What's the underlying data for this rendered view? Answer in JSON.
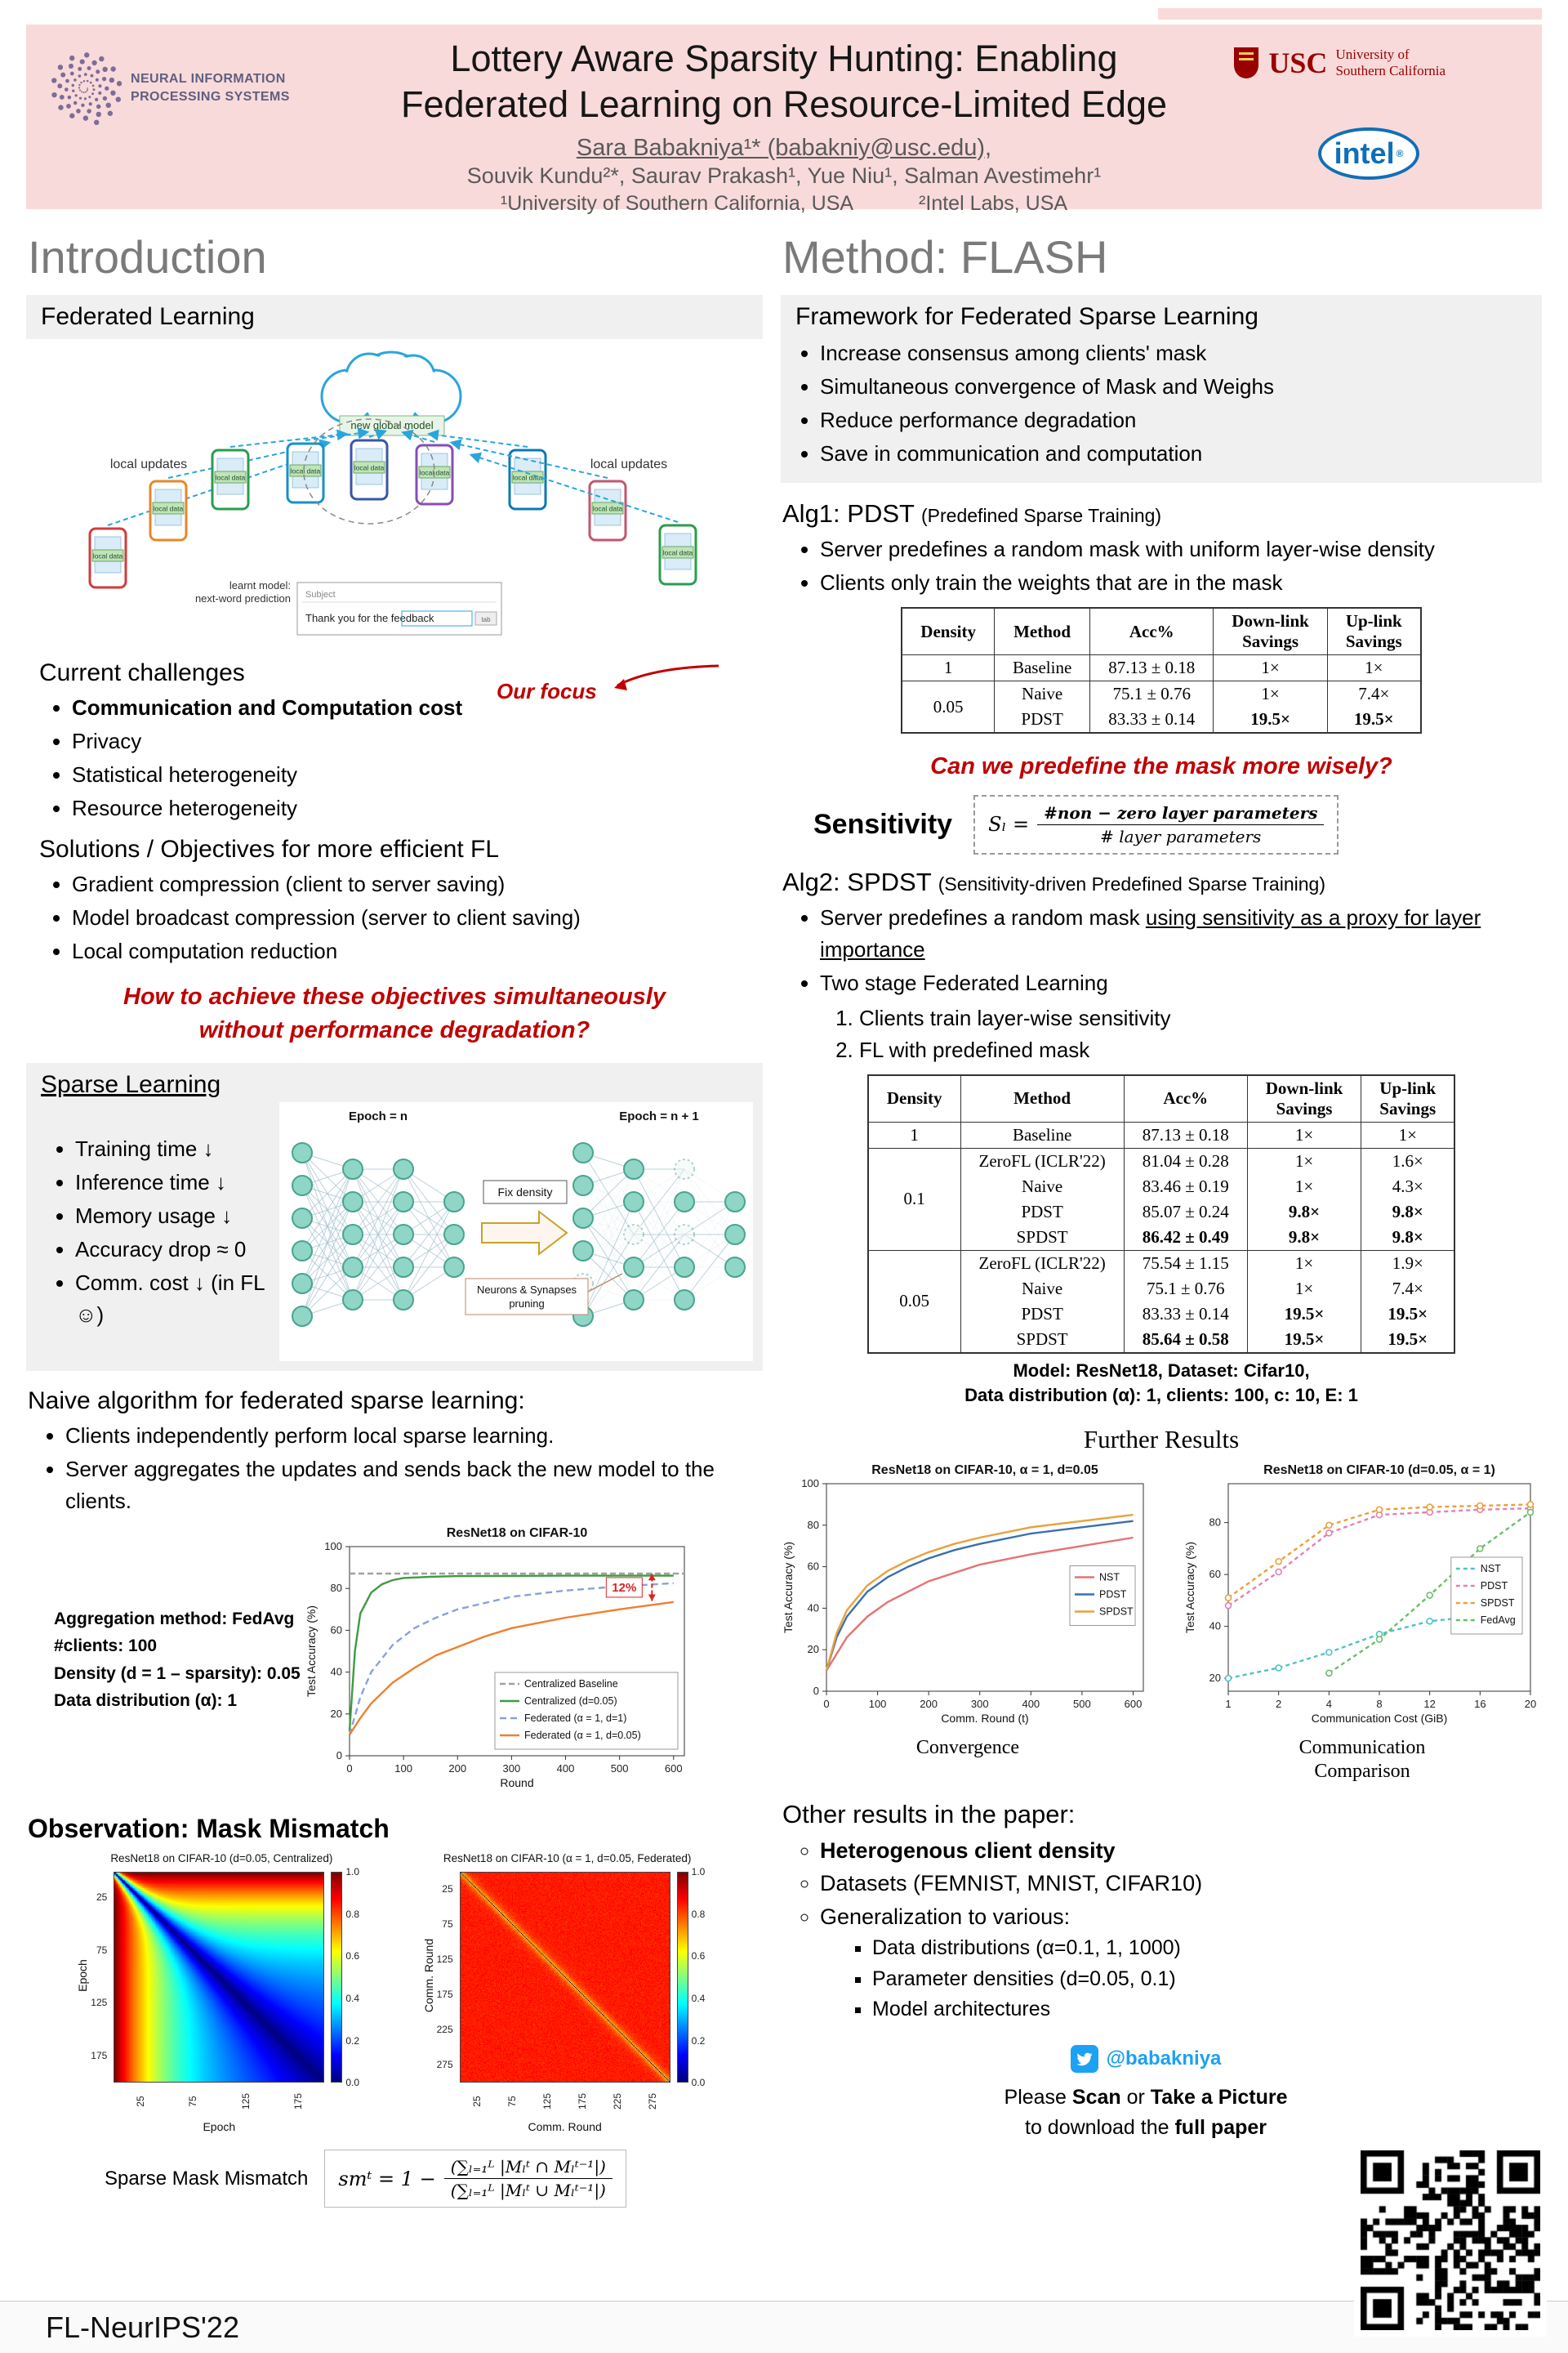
{
  "header": {
    "title_line1": "Lottery Aware Sparsity Hunting: Enabling",
    "title_line2": "Federated Learning on Resource-Limited Edge",
    "author_line1": "Sara Babakniya¹* (babakniy@usc.edu),",
    "author_line2": "Souvik Kundu²*, Saurav Prakash¹, Yue Niu¹, Salman Avestimehr¹",
    "affil_1": "¹University of Southern California, USA",
    "affil_2": "²Intel Labs, USA",
    "neurips_line1": "NEURAL INFORMATION",
    "neurips_line2": "PROCESSING SYSTEMS",
    "usc_name": "USC",
    "usc_sub1": "University of",
    "usc_sub2": "Southern California",
    "intel_name": "intel",
    "intel_r": "®"
  },
  "intro": {
    "title": "Introduction",
    "fl": {
      "title": "Federated Learning",
      "diagram": {
        "cloud_label": "new global model",
        "left_updates": "local updates",
        "right_updates": "local updates",
        "local_data": "local data",
        "learnt_model1": "learnt model:",
        "learnt_model2": "next-word prediction",
        "subject": "Subject",
        "feedback": "Thank you for the feedback",
        "tab": "tab"
      },
      "challenges_title": "Current challenges",
      "our_focus": "Our focus",
      "challenges": [
        "Communication and Computation cost",
        "Privacy",
        "Statistical heterogeneity",
        "Resource heterogeneity"
      ],
      "solutions_title": "Solutions / Objectives for more efficient FL",
      "solutions": [
        "Gradient compression (client to server saving)",
        "Model broadcast compression (server to client saving)",
        "Local computation reduction"
      ],
      "question1": "How to achieve these objectives simultaneously",
      "question2": "without performance degradation?"
    },
    "sparse": {
      "title": "Sparse Learning",
      "benefits": [
        "Training time ↓",
        "Inference time ↓",
        "Memory usage ↓",
        "Accuracy drop ≈ 0",
        "Comm. cost ↓ (in FL☺)"
      ],
      "epoch_left": "Epoch = n",
      "epoch_right": "Epoch = n + 1",
      "fix_density": "Fix density",
      "pruning_label1": "Neurons & Synapses",
      "pruning_label2": "pruning"
    },
    "naive": {
      "title": "Naive algorithm for federated sparse learning:",
      "bullets": [
        "Clients independently perform local sparse learning.",
        "Server aggregates the updates and sends back the new model to the clients."
      ],
      "setup": [
        "Aggregation method: FedAvg",
        "#clients: 100",
        "Density (d = 1 – sparsity): 0.05",
        "Data distribution (α): 1"
      ]
    },
    "observation": {
      "title": "Observation: Mask Mismatch",
      "formula_label": "Sparse Mask Mismatch",
      "formula_lhs": "smᵗ = 1 −",
      "formula_num": "(∑ₗ₌₁ᴸ |Mₗᵗ ∩ Mₗᵗ⁻¹|)",
      "formula_den": "(∑ₗ₌₁ᴸ |Mₗᵗ ∪ Mₗᵗ⁻¹|)"
    }
  },
  "method": {
    "title": "Method: FLASH",
    "framework": {
      "title": "Framework for Federated Sparse Learning",
      "bullets": [
        "Increase consensus among clients' mask",
        "Simultaneous convergence of Mask and Weighs",
        "Reduce performance degradation",
        "Save in communication and computation"
      ]
    },
    "alg1": {
      "title": "Alg1: PDST",
      "subtitle": "(Predefined Sparse Training)",
      "bullets": [
        "Server predefines a random mask with uniform layer-wise density",
        "Clients only train the weights that are in the mask"
      ]
    },
    "table1": {
      "headers": [
        "Density",
        "Method",
        "Acc%",
        "Down-link\nSavings",
        "Up-link\nSavings"
      ],
      "groups": [
        {
          "density": "1",
          "rows": [
            {
              "method": "Baseline",
              "acc": "87.13 ± 0.18",
              "down": "1×",
              "up": "1×"
            }
          ]
        },
        {
          "density": "0.05",
          "rows": [
            {
              "method": "Naive",
              "acc": "75.1 ± 0.76",
              "down": "1×",
              "up": "7.4×"
            },
            {
              "method": "PDST",
              "acc": "83.33 ± 0.14",
              "down": "19.5×",
              "up": "19.5×",
              "bold_savings": true
            }
          ]
        }
      ]
    },
    "question": "Can we predefine the mask more wisely?",
    "sensitivity": {
      "label": "Sensitivity",
      "lhs": "Sₗ =",
      "num": "#non − zero layer parameters",
      "den": "# layer parameters"
    },
    "alg2": {
      "title": "Alg2: SPDST",
      "subtitle": "(Sensitivity-driven Predefined Sparse Training)",
      "b1_plain": "Server predefines a random mask ",
      "b1_underline": "using sensitivity as a proxy for layer importance",
      "b2": "Two stage Federated Learning",
      "steps": [
        "Clients train layer-wise sensitivity",
        "FL with predefined mask"
      ]
    },
    "table2": {
      "headers": [
        "Density",
        "Method",
        "Acc%",
        "Down-link\nSavings",
        "Up-link\nSavings"
      ],
      "groups": [
        {
          "density": "1",
          "rows": [
            {
              "method": "Baseline",
              "acc": "87.13 ± 0.18",
              "down": "1×",
              "up": "1×"
            }
          ]
        },
        {
          "density": "0.1",
          "rows": [
            {
              "method": "ZeroFL (ICLR'22)",
              "acc": "81.04 ± 0.28",
              "down": "1×",
              "up": "1.6×"
            },
            {
              "method": "Naive",
              "acc": "83.46 ± 0.19",
              "down": "1×",
              "up": "4.3×"
            },
            {
              "method": "PDST",
              "acc": "85.07 ± 0.24",
              "down": "9.8×",
              "up": "9.8×",
              "bold_savings": true
            },
            {
              "method": "SPDST",
              "acc": "86.42 ± 0.49",
              "down": "9.8×",
              "up": "9.8×",
              "bold_acc": true,
              "bold_savings": true
            }
          ]
        },
        {
          "density": "0.05",
          "rows": [
            {
              "method": "ZeroFL (ICLR'22)",
              "acc": "75.54 ± 1.15",
              "down": "1×",
              "up": "1.9×"
            },
            {
              "method": "Naive",
              "acc": "75.1 ± 0.76",
              "down": "1×",
              "up": "7.4×"
            },
            {
              "method": "PDST",
              "acc": "83.33 ± 0.14",
              "down": "19.5×",
              "up": "19.5×",
              "bold_savings": true
            },
            {
              "method": "SPDST",
              "acc": "85.64 ± 0.58",
              "down": "19.5×",
              "up": "19.5×",
              "bold_acc": true,
              "bold_savings": true
            }
          ]
        }
      ],
      "caption1": "Model: ResNet18, Dataset: Cifar10,",
      "caption2": "Data distribution (α): 1, clients: 100, c: 10, E: 1"
    },
    "further": {
      "title": "Further Results",
      "caption_left": "Convergence",
      "caption_right1": "Communication",
      "caption_right2": "Comparison"
    },
    "other": {
      "title": "Other results in the paper:",
      "items": [
        "Heterogenous client density",
        "Datasets (FEMNIST, MNIST, CIFAR10)",
        "Generalization to various:"
      ],
      "subitems": [
        "Data distributions (α=0.1, 1, 1000)",
        "Parameter densities (d=0.05, 0.1)",
        "Model architectures"
      ]
    }
  },
  "footer": {
    "venue": "FL-NeurIPS'22",
    "twitter": "@babakniya",
    "scan_parts1": [
      {
        "t": "Please ",
        "b": false
      },
      {
        "t": "Scan",
        "b": true
      },
      {
        "t": " or ",
        "b": false
      },
      {
        "t": "Take a Picture",
        "b": true
      }
    ],
    "scan_parts2": [
      {
        "t": "to download the ",
        "b": false
      },
      {
        "t": "full paper",
        "b": true
      }
    ]
  },
  "chart_data": [
    {
      "id": "naive_chart",
      "type": "line",
      "title": "ResNet18 on CIFAR-10",
      "xlabel": "Round",
      "ylabel": "Test Accuracy (%)",
      "xlim": [
        0,
        620
      ],
      "ylim": [
        0,
        100
      ],
      "xticks": [
        0,
        100,
        200,
        300,
        400,
        500,
        600
      ],
      "yticks": [
        0,
        20,
        40,
        60,
        80,
        100
      ],
      "legend_pos": "bottom-right",
      "annotation": {
        "text": "12%",
        "x": 560,
        "y_from": 74,
        "y_to": 87
      },
      "series": [
        {
          "name": "Centralized Baseline",
          "color": "#a0a0a0",
          "dash": [
            7,
            4
          ],
          "x": [
            0,
            620
          ],
          "y": [
            87.1,
            87.1
          ]
        },
        {
          "name": "Centralized (d=0.05)",
          "color": "#3f9b41",
          "dash": [],
          "x": [
            0,
            10,
            20,
            40,
            60,
            80,
            100,
            150,
            200,
            300,
            400,
            500,
            600
          ],
          "y": [
            12,
            50,
            68,
            78,
            82,
            84,
            85,
            85.6,
            85.9,
            86,
            86.1,
            86.1,
            86.1
          ]
        },
        {
          "name": "Federated (α = 1, d=1)",
          "color": "#8aa0dc",
          "dash": [
            8,
            5
          ],
          "x": [
            0,
            20,
            40,
            80,
            120,
            160,
            200,
            250,
            300,
            400,
            500,
            600
          ],
          "y": [
            10,
            28,
            40,
            53,
            61,
            66,
            70,
            73,
            76,
            79,
            81,
            82.5
          ]
        },
        {
          "name": "Federated (α = 1, d=0.05)",
          "color": "#f07f2e",
          "dash": [],
          "x": [
            0,
            20,
            40,
            80,
            120,
            160,
            200,
            250,
            300,
            400,
            500,
            600
          ],
          "y": [
            10,
            18,
            25,
            35,
            42,
            48,
            52,
            57,
            61,
            66,
            70,
            73.5
          ]
        }
      ]
    },
    {
      "id": "heat_central",
      "type": "heatmap",
      "title": "ResNet18 on CIFAR-10 (d=0.05, Centralized)",
      "xlabel": "Epoch",
      "ylabel": "Epoch",
      "n": 200,
      "ticks": [
        25,
        75,
        125,
        175
      ],
      "cbar_ticks": [
        "1.0",
        "0.8",
        "0.6",
        "0.4",
        "0.2",
        "0.0"
      ],
      "pattern": "centralized",
      "range": [
        0,
        1
      ]
    },
    {
      "id": "heat_fed",
      "type": "heatmap",
      "title": "ResNet18 on CIFAR-10 (α = 1, d=0.05, Federated)",
      "xlabel": "Comm. Round",
      "ylabel": "Comm. Round",
      "n": 300,
      "ticks": [
        25,
        75,
        125,
        175,
        225,
        275
      ],
      "cbar_ticks": [
        "1.0",
        "0.8",
        "0.6",
        "0.4",
        "0.2",
        "0.0"
      ],
      "pattern": "federated",
      "range": [
        0,
        1
      ]
    },
    {
      "id": "conv_chart",
      "type": "line",
      "title": "ResNet18 on CIFAR-10, α = 1, d=0.05",
      "xlabel": "Comm. Round (t)",
      "ylabel": "Test Accuracy (%)",
      "xlim": [
        0,
        620
      ],
      "ylim": [
        0,
        100
      ],
      "xticks": [
        0,
        100,
        200,
        300,
        400,
        500,
        600
      ],
      "yticks": [
        0,
        20,
        40,
        60,
        80,
        100
      ],
      "legend_pos": "right",
      "series": [
        {
          "name": "NST",
          "color": "#e57373",
          "dash": [],
          "x": [
            0,
            20,
            40,
            80,
            120,
            160,
            200,
            250,
            300,
            400,
            500,
            600
          ],
          "y": [
            10,
            18,
            26,
            36,
            43,
            48,
            53,
            57,
            61,
            66,
            70,
            74
          ]
        },
        {
          "name": "PDST",
          "color": "#3a6fb0",
          "dash": [],
          "x": [
            0,
            20,
            40,
            80,
            120,
            160,
            200,
            250,
            300,
            400,
            500,
            600
          ],
          "y": [
            10,
            26,
            36,
            48,
            55,
            60,
            64,
            68,
            71,
            76,
            79,
            82
          ]
        },
        {
          "name": "SPDST",
          "color": "#e9a13b",
          "dash": [],
          "x": [
            0,
            20,
            40,
            80,
            120,
            160,
            200,
            250,
            300,
            400,
            500,
            600
          ],
          "y": [
            10,
            28,
            39,
            51,
            58,
            63,
            67,
            71,
            74,
            79,
            82,
            85
          ]
        }
      ]
    },
    {
      "id": "comm_chart",
      "type": "line",
      "title": "ResNet18 on CIFAR-10 (d=0.05, α = 1)",
      "xlabel": "Communication Cost (GiB)",
      "ylabel": "Test Accuracy (%)",
      "even_x": true,
      "ylim": [
        15,
        95
      ],
      "xticks": [
        1,
        2,
        4,
        8,
        12,
        16,
        20
      ],
      "yticks": [
        20,
        40,
        60,
        80
      ],
      "legend_pos": "right",
      "series": [
        {
          "name": "NST",
          "color": "#4fc3c7",
          "dash": [
            5,
            4
          ],
          "marker": true,
          "x": [
            1,
            2,
            4,
            8,
            12,
            16
          ],
          "y": [
            20,
            24,
            30,
            37,
            42,
            44
          ]
        },
        {
          "name": "PDST",
          "color": "#e080b8",
          "dash": [
            5,
            4
          ],
          "marker": true,
          "x": [
            1,
            2,
            4,
            8,
            12,
            16,
            20
          ],
          "y": [
            48,
            61,
            76,
            83,
            84,
            85,
            85.5
          ]
        },
        {
          "name": "SPDST",
          "color": "#e9a13b",
          "dash": [
            5,
            4
          ],
          "marker": true,
          "x": [
            1,
            2,
            4,
            8,
            12,
            16,
            20
          ],
          "y": [
            51,
            65,
            79,
            85,
            86,
            86.5,
            87
          ]
        },
        {
          "name": "FedAvg",
          "color": "#6abf69",
          "dash": [
            5,
            4
          ],
          "marker": true,
          "x": [
            4,
            8,
            12,
            16,
            20
          ],
          "y": [
            22,
            35,
            52,
            70,
            84
          ]
        }
      ]
    }
  ]
}
